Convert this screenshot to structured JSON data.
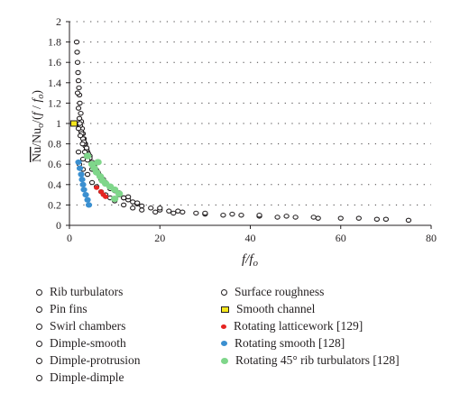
{
  "chart_data": {
    "type": "scatter",
    "xlabel_main": "f",
    "xlabel_sub": "f",
    "xlabel_sub_index": "o",
    "ylabel": "Nu/Nu_o/(f/f_o)",
    "xlim": [
      0,
      80
    ],
    "ylim": [
      0,
      2
    ],
    "xticks": [
      "0",
      "20",
      "40",
      "60",
      "80"
    ],
    "yticks": [
      "0",
      "0.2",
      "0.4",
      "0.6",
      "0.8",
      "1",
      "1.2",
      "1.4",
      "1.6",
      "1.8",
      "2"
    ],
    "grid": "dotted horizontal",
    "series": [
      {
        "name": "Rib turbulators",
        "marker": "open-circle",
        "points": [
          [
            1.6,
            1.8
          ],
          [
            1.7,
            1.7
          ],
          [
            1.8,
            1.6
          ],
          [
            1.9,
            1.5
          ],
          [
            2.0,
            1.42
          ],
          [
            2.1,
            1.35
          ],
          [
            2.2,
            1.28
          ],
          [
            2.3,
            1.2
          ],
          [
            2.5,
            1.1
          ],
          [
            2.6,
            1.02
          ],
          [
            2.8,
            0.95
          ],
          [
            3.0,
            0.9
          ],
          [
            3.2,
            0.85
          ],
          [
            3.5,
            0.8
          ],
          [
            3.8,
            0.75
          ],
          [
            4.0,
            0.72
          ],
          [
            4.5,
            0.68
          ],
          [
            5,
            0.62
          ],
          [
            5.5,
            0.58
          ],
          [
            6,
            0.54
          ],
          [
            6.5,
            0.5
          ],
          [
            7,
            0.46
          ],
          [
            8,
            0.42
          ],
          [
            9,
            0.38
          ],
          [
            10,
            0.34
          ],
          [
            11,
            0.3
          ],
          [
            12,
            0.27
          ],
          [
            13,
            0.25
          ],
          [
            14,
            0.23
          ],
          [
            15,
            0.21
          ],
          [
            16,
            0.19
          ],
          [
            18,
            0.17
          ],
          [
            20,
            0.15
          ],
          [
            22,
            0.14
          ],
          [
            25,
            0.13
          ],
          [
            28,
            0.12
          ],
          [
            30,
            0.11
          ],
          [
            34,
            0.1
          ],
          [
            38,
            0.1
          ],
          [
            42,
            0.09
          ],
          [
            46,
            0.08
          ],
          [
            50,
            0.08
          ],
          [
            55,
            0.07
          ]
        ]
      },
      {
        "name": "Pin fins",
        "marker": "open-circle",
        "points": [
          [
            2.2,
            0.6
          ],
          [
            3,
            0.55
          ],
          [
            4,
            0.5
          ],
          [
            5,
            0.42
          ],
          [
            6,
            0.38
          ],
          [
            7,
            0.33
          ],
          [
            8,
            0.3
          ],
          [
            9,
            0.27
          ],
          [
            10,
            0.24
          ],
          [
            12,
            0.2
          ],
          [
            14,
            0.17
          ],
          [
            16,
            0.15
          ],
          [
            19,
            0.13
          ],
          [
            23,
            0.12
          ]
        ]
      },
      {
        "name": "Swirl chambers",
        "marker": "open-circle",
        "points": [
          [
            3.5,
            0.78
          ],
          [
            4.2,
            0.7
          ],
          [
            5.2,
            0.6
          ],
          [
            6.3,
            0.52
          ],
          [
            7.5,
            0.45
          ],
          [
            9,
            0.38
          ],
          [
            11,
            0.32
          ],
          [
            13,
            0.28
          ]
        ]
      },
      {
        "name": "Dimple-smooth",
        "marker": "open-circle",
        "points": [
          [
            1.8,
            1.3
          ],
          [
            2.0,
            1.15
          ],
          [
            2.2,
            1.05
          ],
          [
            2.4,
            0.98
          ],
          [
            2.6,
            0.92
          ],
          [
            3.0,
            0.85
          ],
          [
            3.3,
            0.8
          ],
          [
            3.8,
            0.74
          ]
        ]
      },
      {
        "name": "Dimple-protrusion",
        "marker": "open-circle",
        "points": [
          [
            2.3,
            1.0
          ],
          [
            2.7,
            0.9
          ],
          [
            3.2,
            0.82
          ],
          [
            3.8,
            0.76
          ],
          [
            4.5,
            0.66
          ],
          [
            5.3,
            0.58
          ]
        ]
      },
      {
        "name": "Dimple-dimple",
        "marker": "open-circle",
        "points": [
          [
            2.0,
            0.95
          ],
          [
            2.4,
            0.88
          ],
          [
            2.9,
            0.8
          ],
          [
            3.4,
            0.72
          ],
          [
            4.0,
            0.64
          ]
        ]
      },
      {
        "name": "Surface roughness",
        "marker": "open-circle",
        "points": [
          [
            2,
            0.72
          ],
          [
            3,
            0.65
          ],
          [
            5,
            0.55
          ],
          [
            7,
            0.45
          ],
          [
            9,
            0.36
          ],
          [
            12,
            0.27
          ],
          [
            15,
            0.22
          ],
          [
            20,
            0.17
          ],
          [
            24,
            0.14
          ],
          [
            30,
            0.12
          ],
          [
            36,
            0.11
          ],
          [
            42,
            0.1
          ],
          [
            48,
            0.09
          ],
          [
            54,
            0.08
          ],
          [
            60,
            0.07
          ],
          [
            64,
            0.07
          ],
          [
            68,
            0.06
          ],
          [
            70,
            0.06
          ],
          [
            75,
            0.05
          ]
        ]
      },
      {
        "name": "Smooth channel",
        "marker": "yellow-square",
        "points": [
          [
            1,
            1
          ]
        ]
      },
      {
        "name": "Rotating latticework [129]",
        "marker": "red-dot",
        "points": [
          [
            6,
            0.37
          ],
          [
            7,
            0.33
          ],
          [
            7.5,
            0.3
          ],
          [
            8,
            0.28
          ]
        ]
      },
      {
        "name": "Rotating smooth [128]",
        "marker": "blue-dot",
        "points": [
          [
            2,
            0.62
          ],
          [
            2.3,
            0.56
          ],
          [
            2.6,
            0.5
          ],
          [
            2.8,
            0.45
          ],
          [
            3,
            0.4
          ],
          [
            3.2,
            0.35
          ],
          [
            3.6,
            0.3
          ],
          [
            4,
            0.25
          ],
          [
            4.3,
            0.2
          ]
        ]
      },
      {
        "name": "Rotating 45° rib turbulators [128]",
        "marker": "green-dot",
        "points": [
          [
            4,
            0.68
          ],
          [
            5,
            0.6
          ],
          [
            5.5,
            0.56
          ],
          [
            6,
            0.52
          ],
          [
            6.3,
            0.62
          ],
          [
            6.8,
            0.48
          ],
          [
            7.3,
            0.44
          ],
          [
            8,
            0.41
          ],
          [
            9,
            0.38
          ],
          [
            10,
            0.35
          ],
          [
            11,
            0.31
          ],
          [
            10,
            0.26
          ]
        ]
      }
    ]
  },
  "legend_left": [
    "Rib turbulators",
    "Pin fins",
    "Swirl chambers",
    "Dimple-smooth",
    "Dimple-protrusion",
    "Dimple-dimple"
  ],
  "legend_right": [
    "Surface roughness",
    "Smooth channel",
    "Rotating latticework [129]",
    "Rotating smooth [128]",
    "Rotating 45° rib turbulators [128]"
  ]
}
